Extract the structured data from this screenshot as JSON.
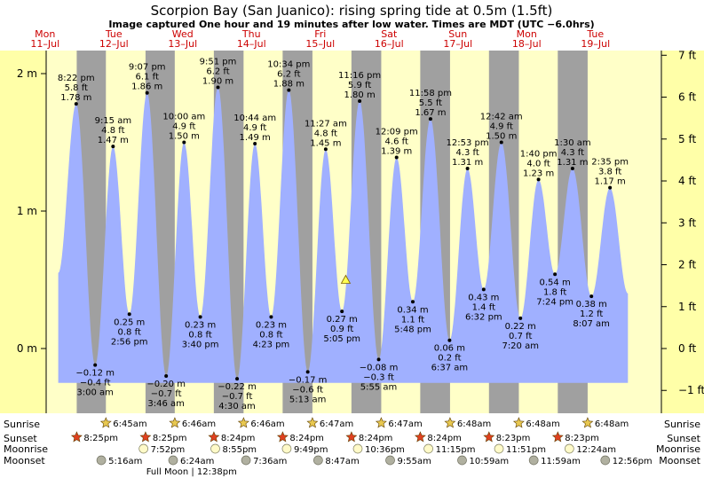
{
  "chart_data": {
    "type": "area",
    "title": "Scorpion Bay (San Juanico): rising  spring tide at 0.5m (1.5ft)",
    "subtitle": "Image captured One hour and 19 minutes after low water. Times are MDT (UTC −6.0hrs)",
    "y_left_unit": "m",
    "y_left_ticks": [
      {
        "value": 2,
        "label": "2 m"
      },
      {
        "value": 1,
        "label": "1 m"
      },
      {
        "value": 0,
        "label": "0 m"
      }
    ],
    "y_right_ticks": [
      {
        "value": 7,
        "label": "7 ft"
      },
      {
        "value": 6,
        "label": "6 ft"
      },
      {
        "value": 5,
        "label": "5 ft"
      },
      {
        "value": 4,
        "label": "4 ft"
      },
      {
        "value": 3,
        "label": "3 ft"
      },
      {
        "value": 2,
        "label": "2 ft"
      },
      {
        "value": 1,
        "label": "1 ft"
      },
      {
        "value": 0,
        "label": "0 ft"
      },
      {
        "value": -1,
        "label": "−1 ft"
      }
    ],
    "ylim_m": [
      -0.5,
      2.2
    ],
    "x_start_day_index": 0,
    "x_end_day_index": 8.95,
    "day_labels": [
      {
        "day": "Mon",
        "date": "11–Jul"
      },
      {
        "day": "Tue",
        "date": "12–Jul"
      },
      {
        "day": "Wed",
        "date": "13–Jul"
      },
      {
        "day": "Thu",
        "date": "14–Jul"
      },
      {
        "day": "Fri",
        "date": "15–Jul"
      },
      {
        "day": "Sat",
        "date": "16–Jul"
      },
      {
        "day": "Sun",
        "date": "17–Jul"
      },
      {
        "day": "Mon",
        "date": "18–Jul"
      },
      {
        "day": "Tue",
        "date": "19–Jul"
      }
    ],
    "night_periods": [
      {
        "start_day": 0.857,
        "end_day": 1.281
      },
      {
        "start_day": 1.857,
        "end_day": 2.282
      },
      {
        "start_day": 2.85,
        "end_day": 3.282
      },
      {
        "start_day": 3.85,
        "end_day": 4.283
      },
      {
        "start_day": 4.85,
        "end_day": 5.283
      },
      {
        "start_day": 5.85,
        "end_day": 6.283
      },
      {
        "start_day": 6.849,
        "end_day": 7.283
      },
      {
        "start_day": 7.849,
        "end_day": 8.283
      }
    ],
    "tide_events": [
      {
        "t_day": 0.849,
        "type": "high",
        "time": "8:22 pm",
        "ft": "5.8 ft",
        "m": "1.78 m",
        "value_m": 1.78
      },
      {
        "t_day": 1.125,
        "type": "low",
        "time": "3:00 am",
        "ft": "−0.4 ft",
        "m": "−0.12 m",
        "value_m": -0.12
      },
      {
        "t_day": 1.385,
        "type": "high",
        "time": "9:15 am",
        "ft": "4.8 ft",
        "m": "1.47 m",
        "value_m": 1.47
      },
      {
        "t_day": 1.622,
        "type": "low",
        "time": "2:56 pm",
        "ft": "0.8 ft",
        "m": "0.25 m",
        "value_m": 0.25
      },
      {
        "t_day": 1.88,
        "type": "high",
        "time": "9:07 pm",
        "ft": "6.1 ft",
        "m": "1.86 m",
        "value_m": 1.86
      },
      {
        "t_day": 2.157,
        "type": "low",
        "time": "3:46 am",
        "ft": "−0.7 ft",
        "m": "−0.20 m",
        "value_m": -0.2
      },
      {
        "t_day": 2.417,
        "type": "high",
        "time": "10:00 am",
        "ft": "4.9 ft",
        "m": "1.50 m",
        "value_m": 1.5
      },
      {
        "t_day": 2.653,
        "type": "low",
        "time": "3:40 pm",
        "ft": "0.8 ft",
        "m": "0.23 m",
        "value_m": 0.23
      },
      {
        "t_day": 2.91,
        "type": "high",
        "time": "9:51 pm",
        "ft": "6.2 ft",
        "m": "1.90 m",
        "value_m": 1.9
      },
      {
        "t_day": 3.188,
        "type": "low",
        "time": "4:30 am",
        "ft": "−0.7 ft",
        "m": "−0.22 m",
        "value_m": -0.22
      },
      {
        "t_day": 3.447,
        "type": "high",
        "time": "10:44 am",
        "ft": "4.9 ft",
        "m": "1.49 m",
        "value_m": 1.49
      },
      {
        "t_day": 3.683,
        "type": "low",
        "time": "4:23 pm",
        "ft": "0.8 ft",
        "m": "0.23 m",
        "value_m": 0.23
      },
      {
        "t_day": 3.94,
        "type": "high",
        "time": "10:34 pm",
        "ft": "6.2 ft",
        "m": "1.88 m",
        "value_m": 1.88
      },
      {
        "t_day": 4.215,
        "type": "low",
        "time": "5:13 am",
        "ft": "−0.6 ft",
        "m": "−0.17 m",
        "value_m": -0.17
      },
      {
        "t_day": 4.476,
        "type": "high",
        "time": "11:27 am",
        "ft": "4.8 ft",
        "m": "1.45 m",
        "value_m": 1.45
      },
      {
        "t_day": 4.712,
        "type": "low",
        "time": "5:05 pm",
        "ft": "0.9 ft",
        "m": "0.27 m",
        "value_m": 0.27
      },
      {
        "t_day": 4.969,
        "type": "high",
        "time": "11:16 pm",
        "ft": "5.9 ft",
        "m": "1.80 m",
        "value_m": 1.8
      },
      {
        "t_day": 5.246,
        "type": "low",
        "time": "5:55 am",
        "ft": "−0.3 ft",
        "m": "−0.08 m",
        "value_m": -0.08
      },
      {
        "t_day": 5.506,
        "type": "high",
        "time": "12:09 pm",
        "ft": "4.6 ft",
        "m": "1.39 m",
        "value_m": 1.39
      },
      {
        "t_day": 5.742,
        "type": "low",
        "time": "5:48 pm",
        "ft": "1.1 ft",
        "m": "0.34 m",
        "value_m": 0.34
      },
      {
        "t_day": 5.999,
        "type": "high",
        "time": "11:58 pm",
        "ft": "5.5 ft",
        "m": "1.67 m",
        "value_m": 1.67
      },
      {
        "t_day": 6.276,
        "type": "low",
        "time": "6:37 am",
        "ft": "0.2 ft",
        "m": "0.06 m",
        "value_m": 0.06
      },
      {
        "t_day": 6.537,
        "type": "high",
        "time": "12:53 pm",
        "ft": "4.3 ft",
        "m": "1.31 m",
        "value_m": 1.31
      },
      {
        "t_day": 6.772,
        "type": "low",
        "time": "6:32 pm",
        "ft": "1.4 ft",
        "m": "0.43 m",
        "value_m": 0.43
      },
      {
        "t_day": 7.029,
        "type": "high",
        "time": "12:42 am",
        "ft": "4.9 ft",
        "m": "1.50 m",
        "value_m": 1.5
      },
      {
        "t_day": 7.306,
        "type": "low",
        "time": "7:20 am",
        "ft": "0.7 ft",
        "m": "0.22 m",
        "value_m": 0.22
      },
      {
        "t_day": 7.569,
        "type": "high",
        "time": "1:40 pm",
        "ft": "4.0 ft",
        "m": "1.23 m",
        "value_m": 1.23
      },
      {
        "t_day": 7.808,
        "type": "low",
        "time": "7:24 pm",
        "ft": "1.8 ft",
        "m": "0.54 m",
        "value_m": 0.54
      },
      {
        "t_day": 8.063,
        "type": "high",
        "time": "1:30 am",
        "ft": "4.3 ft",
        "m": "1.31 m",
        "value_m": 1.31
      },
      {
        "t_day": 8.338,
        "type": "low",
        "time": "8:07 am",
        "ft": "1.2 ft",
        "m": "0.38 m",
        "value_m": 0.38
      },
      {
        "t_day": 8.608,
        "type": "high",
        "time": "2:35 pm",
        "ft": "3.8 ft",
        "m": "1.17 m",
        "value_m": 1.17
      }
    ],
    "current_marker": {
      "t_day": 4.767,
      "value_m": 0.5
    },
    "row_labels": {
      "sunrise": "Sunrise",
      "sunset": "Sunset",
      "moonrise": "Moonrise",
      "moonset": "Moonset"
    },
    "sunrise": [
      {
        "t_day": 1.281,
        "label": "6:45am"
      },
      {
        "t_day": 2.282,
        "label": "6:46am"
      },
      {
        "t_day": 3.282,
        "label": "6:46am"
      },
      {
        "t_day": 4.283,
        "label": "6:47am"
      },
      {
        "t_day": 5.283,
        "label": "6:47am"
      },
      {
        "t_day": 6.283,
        "label": "6:48am"
      },
      {
        "t_day": 7.283,
        "label": "6:48am"
      },
      {
        "t_day": 8.283,
        "label": "6:48am"
      }
    ],
    "sunset": [
      {
        "t_day": 0.857,
        "label": "8:25pm"
      },
      {
        "t_day": 1.857,
        "label": "8:25pm"
      },
      {
        "t_day": 2.85,
        "label": "8:24pm"
      },
      {
        "t_day": 3.85,
        "label": "8:24pm"
      },
      {
        "t_day": 4.85,
        "label": "8:24pm"
      },
      {
        "t_day": 5.85,
        "label": "8:24pm"
      },
      {
        "t_day": 6.849,
        "label": "8:23pm"
      },
      {
        "t_day": 7.849,
        "label": "8:23pm"
      }
    ],
    "moonrise": [
      {
        "t_day": 1.828,
        "label": "7:52pm"
      },
      {
        "t_day": 2.871,
        "label": "8:55pm"
      },
      {
        "t_day": 3.909,
        "label": "9:49pm"
      },
      {
        "t_day": 4.942,
        "label": "10:36pm"
      },
      {
        "t_day": 5.969,
        "label": "11:15pm"
      },
      {
        "t_day": 6.994,
        "label": "11:51pm"
      },
      {
        "t_day": 8.017,
        "label": "12:24am"
      }
    ],
    "moonset": [
      {
        "t_day": 1.214,
        "label": "5:16am"
      },
      {
        "t_day": 2.258,
        "label": "6:24am"
      },
      {
        "t_day": 3.317,
        "label": "7:36am"
      },
      {
        "t_day": 4.366,
        "label": "8:47am"
      },
      {
        "t_day": 5.413,
        "label": "9:55am"
      },
      {
        "t_day": 6.458,
        "label": "10:59am"
      },
      {
        "t_day": 7.499,
        "label": "11:59am"
      },
      {
        "t_day": 8.539,
        "label": "12:56pm"
      }
    ],
    "moon_phase": {
      "t_day": 2.526,
      "label": "Full Moon",
      "time": "12:38pm"
    },
    "colors": {
      "day_band": "#ffffc8",
      "night_band": "#a0a0a0",
      "water": "#a0b0ff",
      "axis_panel": "#ffffa8",
      "day_label": "#cc0000",
      "sunrise_star": "#e8c850",
      "sunset_star": "#e04020",
      "moonrise": "#fffac8",
      "moonset": "#b0b0a0",
      "current_marker": "#ffff50"
    }
  }
}
